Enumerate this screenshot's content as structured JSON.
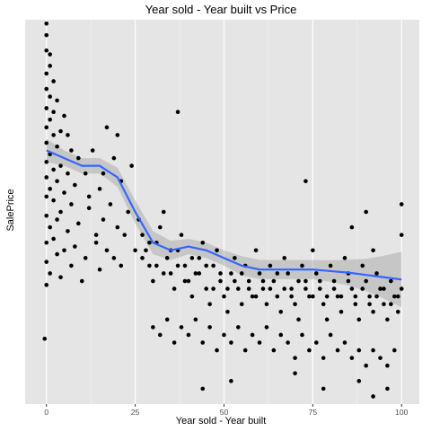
{
  "chart_data": {
    "type": "scatter",
    "title": "Year sold - Year built vs Price",
    "xlabel": "Year sold - Year built",
    "ylabel": "SalePrice",
    "xlim": [
      -6,
      105
    ],
    "ylim": [
      0,
      100
    ],
    "x_ticks": [
      {
        "value": 0,
        "label": "0"
      },
      {
        "value": 25,
        "label": "25"
      },
      {
        "value": 50,
        "label": "50"
      },
      {
        "value": 75,
        "label": "75"
      },
      {
        "value": 100,
        "label": "100"
      }
    ],
    "y_ticks_shown": false,
    "grid": true,
    "background": "#e5e5e5",
    "grid_color": "#ffffff",
    "point_color": "#000000",
    "trend_color": "#3366ff",
    "band_color": "#999999",
    "points": [
      [
        0,
        99
      ],
      [
        0,
        96
      ],
      [
        0,
        92
      ],
      [
        1,
        91
      ],
      [
        1,
        88
      ],
      [
        0,
        86
      ],
      [
        2,
        84
      ],
      [
        0,
        82
      ],
      [
        1,
        80
      ],
      [
        3,
        79
      ],
      [
        0,
        77
      ],
      [
        2,
        76
      ],
      [
        5,
        75
      ],
      [
        1,
        74
      ],
      [
        0,
        72
      ],
      [
        4,
        71
      ],
      [
        2,
        70
      ],
      [
        6,
        70
      ],
      [
        0,
        68
      ],
      [
        3,
        67
      ],
      [
        7,
        66
      ],
      [
        1,
        65
      ],
      [
        9,
        64
      ],
      [
        0,
        63
      ],
      [
        4,
        62
      ],
      [
        2,
        61
      ],
      [
        11,
        60
      ],
      [
        6,
        60
      ],
      [
        0,
        59
      ],
      [
        3,
        58
      ],
      [
        8,
        57
      ],
      [
        1,
        56
      ],
      [
        5,
        55
      ],
      [
        0,
        54
      ],
      [
        2,
        53
      ],
      [
        7,
        52
      ],
      [
        12,
        51
      ],
      [
        4,
        50
      ],
      [
        0,
        49
      ],
      [
        3,
        48
      ],
      [
        9,
        47
      ],
      [
        1,
        46
      ],
      [
        6,
        45
      ],
      [
        14,
        44
      ],
      [
        2,
        43
      ],
      [
        0,
        42
      ],
      [
        8,
        41
      ],
      [
        5,
        40
      ],
      [
        3,
        39
      ],
      [
        11,
        38
      ],
      [
        0,
        37
      ],
      [
        7,
        36
      ],
      [
        15,
        35
      ],
      [
        1,
        34
      ],
      [
        4,
        33
      ],
      [
        10,
        32
      ],
      [
        0,
        31
      ],
      [
        17,
        72
      ],
      [
        13,
        66
      ],
      [
        19,
        64
      ],
      [
        21,
        58
      ],
      [
        15,
        56
      ],
      [
        12,
        54
      ],
      [
        18,
        52
      ],
      [
        23,
        50
      ],
      [
        16,
        48
      ],
      [
        20,
        46
      ],
      [
        22,
        44
      ],
      [
        14,
        42
      ],
      [
        17,
        40
      ],
      [
        19,
        38
      ],
      [
        21,
        36
      ],
      [
        16,
        60
      ],
      [
        24,
        62
      ],
      [
        20,
        70
      ],
      [
        26,
        48
      ],
      [
        27,
        44
      ],
      [
        28,
        40
      ],
      [
        29,
        36
      ],
      [
        30,
        32
      ],
      [
        31,
        42
      ],
      [
        32,
        46
      ],
      [
        33,
        50
      ],
      [
        34,
        38
      ],
      [
        35,
        34
      ],
      [
        36,
        30
      ],
      [
        37,
        40
      ],
      [
        38,
        44
      ],
      [
        39,
        36
      ],
      [
        40,
        32
      ],
      [
        41,
        28
      ],
      [
        42,
        34
      ],
      [
        43,
        38
      ],
      [
        44,
        42
      ],
      [
        45,
        30
      ],
      [
        46,
        26
      ],
      [
        47,
        36
      ],
      [
        48,
        40
      ],
      [
        49,
        32
      ],
      [
        50,
        28
      ],
      [
        51,
        24
      ],
      [
        52,
        34
      ],
      [
        53,
        38
      ],
      [
        54,
        30
      ],
      [
        55,
        26
      ],
      [
        56,
        36
      ],
      [
        57,
        32
      ],
      [
        58,
        28
      ],
      [
        59,
        40
      ],
      [
        60,
        34
      ],
      [
        61,
        30
      ],
      [
        62,
        26
      ],
      [
        63,
        36
      ],
      [
        64,
        32
      ],
      [
        65,
        28
      ],
      [
        66,
        24
      ],
      [
        67,
        38
      ],
      [
        68,
        34
      ],
      [
        69,
        30
      ],
      [
        70,
        26
      ],
      [
        71,
        22
      ],
      [
        72,
        36
      ],
      [
        73,
        32
      ],
      [
        74,
        28
      ],
      [
        75,
        40
      ],
      [
        76,
        34
      ],
      [
        77,
        30
      ],
      [
        78,
        26
      ],
      [
        79,
        22
      ],
      [
        80,
        36
      ],
      [
        81,
        32
      ],
      [
        82,
        28
      ],
      [
        83,
        24
      ],
      [
        84,
        38
      ],
      [
        85,
        34
      ],
      [
        86,
        30
      ],
      [
        87,
        26
      ],
      [
        88,
        22
      ],
      [
        89,
        36
      ],
      [
        90,
        32
      ],
      [
        91,
        28
      ],
      [
        92,
        24
      ],
      [
        93,
        34
      ],
      [
        94,
        30
      ],
      [
        95,
        26
      ],
      [
        96,
        22
      ],
      [
        97,
        32
      ],
      [
        98,
        28
      ],
      [
        99,
        24
      ],
      [
        100,
        30
      ],
      [
        25,
        40
      ],
      [
        27,
        38
      ],
      [
        29,
        42
      ],
      [
        31,
        36
      ],
      [
        33,
        34
      ],
      [
        35,
        40
      ],
      [
        37,
        36
      ],
      [
        39,
        32
      ],
      [
        41,
        38
      ],
      [
        43,
        34
      ],
      [
        45,
        36
      ],
      [
        47,
        30
      ],
      [
        49,
        34
      ],
      [
        51,
        30
      ],
      [
        53,
        32
      ],
      [
        55,
        34
      ],
      [
        57,
        30
      ],
      [
        59,
        28
      ],
      [
        61,
        32
      ],
      [
        63,
        30
      ],
      [
        65,
        34
      ],
      [
        67,
        30
      ],
      [
        69,
        28
      ],
      [
        71,
        32
      ],
      [
        73,
        30
      ],
      [
        75,
        28
      ],
      [
        77,
        32
      ],
      [
        79,
        28
      ],
      [
        81,
        30
      ],
      [
        83,
        28
      ],
      [
        85,
        32
      ],
      [
        87,
        28
      ],
      [
        89,
        30
      ],
      [
        91,
        26
      ],
      [
        93,
        28
      ],
      [
        95,
        30
      ],
      [
        97,
        26
      ],
      [
        99,
        28
      ],
      [
        30,
        20
      ],
      [
        32,
        18
      ],
      [
        34,
        22
      ],
      [
        36,
        16
      ],
      [
        38,
        20
      ],
      [
        40,
        18
      ],
      [
        42,
        22
      ],
      [
        44,
        16
      ],
      [
        46,
        20
      ],
      [
        48,
        14
      ],
      [
        50,
        18
      ],
      [
        52,
        16
      ],
      [
        54,
        20
      ],
      [
        56,
        14
      ],
      [
        58,
        18
      ],
      [
        60,
        16
      ],
      [
        62,
        20
      ],
      [
        64,
        14
      ],
      [
        66,
        18
      ],
      [
        68,
        16
      ],
      [
        70,
        12
      ],
      [
        72,
        18
      ],
      [
        74,
        14
      ],
      [
        76,
        16
      ],
      [
        78,
        12
      ],
      [
        80,
        18
      ],
      [
        82,
        14
      ],
      [
        84,
        16
      ],
      [
        86,
        12
      ],
      [
        88,
        14
      ],
      [
        90,
        10
      ],
      [
        92,
        14
      ],
      [
        94,
        12
      ],
      [
        96,
        10
      ],
      [
        98,
        14
      ],
      [
        44,
        4
      ],
      [
        52,
        6
      ],
      [
        70,
        8
      ],
      [
        78,
        4
      ],
      [
        88,
        6
      ],
      [
        92,
        2
      ],
      [
        96,
        4
      ],
      [
        -0.5,
        17
      ],
      [
        100,
        52
      ],
      [
        73,
        58
      ],
      [
        100,
        44
      ],
      [
        37,
        76
      ],
      [
        92,
        40
      ],
      [
        90,
        50
      ],
      [
        86,
        46
      ]
    ],
    "trend": [
      [
        0,
        66
      ],
      [
        5,
        64
      ],
      [
        10,
        62
      ],
      [
        15,
        62
      ],
      [
        20,
        59
      ],
      [
        25,
        50
      ],
      [
        30,
        42
      ],
      [
        35,
        40
      ],
      [
        40,
        41
      ],
      [
        45,
        40
      ],
      [
        50,
        38
      ],
      [
        55,
        36
      ],
      [
        60,
        35
      ],
      [
        65,
        35
      ],
      [
        70,
        35
      ],
      [
        75,
        35
      ],
      [
        80,
        34.6
      ],
      [
        85,
        34.2
      ],
      [
        90,
        33.6
      ],
      [
        95,
        33
      ],
      [
        100,
        32.4
      ]
    ],
    "band": [
      [
        0,
        69,
        63
      ],
      [
        5,
        66,
        62
      ],
      [
        10,
        64,
        60
      ],
      [
        15,
        64,
        60
      ],
      [
        20,
        61.5,
        56.5
      ],
      [
        25,
        53,
        47
      ],
      [
        30,
        45,
        39
      ],
      [
        35,
        42.5,
        37.5
      ],
      [
        40,
        43,
        39
      ],
      [
        45,
        42,
        38
      ],
      [
        50,
        40,
        36
      ],
      [
        55,
        38.5,
        33.5
      ],
      [
        60,
        37.5,
        32.5
      ],
      [
        65,
        37.5,
        32.5
      ],
      [
        70,
        37.5,
        32.5
      ],
      [
        75,
        37.5,
        32.5
      ],
      [
        80,
        37.4,
        31.8
      ],
      [
        85,
        37.6,
        30.8
      ],
      [
        90,
        37.8,
        29.4
      ],
      [
        95,
        38.6,
        27.4
      ],
      [
        100,
        39.6,
        25.2
      ]
    ]
  }
}
